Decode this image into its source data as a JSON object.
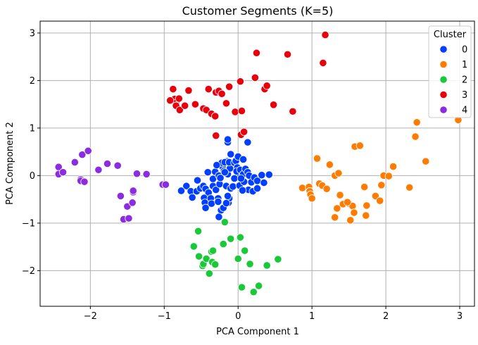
{
  "chart_data": {
    "type": "scatter",
    "title": "Customer Segments (K=5)",
    "xlabel": "PCA Component 1",
    "ylabel": "PCA Component 2",
    "xlim": [
      -2.68,
      3.2
    ],
    "ylim": [
      -2.75,
      3.25
    ],
    "xticks": [
      -2,
      -1,
      0,
      1,
      2,
      3
    ],
    "yticks": [
      -2,
      -1,
      0,
      1,
      2,
      3
    ],
    "xtick_labels": [
      "−2",
      "−1",
      "0",
      "1",
      "2",
      "3"
    ],
    "ytick_labels": [
      "−2",
      "−1",
      "0",
      "1",
      "2",
      "3"
    ],
    "grid": true,
    "legend": {
      "title": "Cluster",
      "position": "top-right"
    },
    "series": [
      {
        "name": "0",
        "color": "#023eff",
        "points": [
          [
            -0.7,
            -0.22
          ],
          [
            -0.77,
            -0.32
          ],
          [
            -0.64,
            -0.33
          ],
          [
            -0.56,
            -0.33
          ],
          [
            -0.62,
            -0.46
          ],
          [
            -0.55,
            -0.1
          ],
          [
            -0.51,
            -0.27
          ],
          [
            -0.47,
            -0.22
          ],
          [
            -0.44,
            -0.28
          ],
          [
            -0.4,
            -0.36
          ],
          [
            -0.46,
            -0.47
          ],
          [
            -0.45,
            -0.57
          ],
          [
            -0.44,
            -0.68
          ],
          [
            -0.37,
            -0.48
          ],
          [
            -0.36,
            -0.59
          ],
          [
            -0.27,
            -0.48
          ],
          [
            -0.27,
            -0.55
          ],
          [
            -0.23,
            -0.73
          ],
          [
            -0.2,
            -0.68
          ],
          [
            -0.26,
            -0.87
          ],
          [
            -0.13,
            -0.57
          ],
          [
            -0.12,
            -0.48
          ],
          [
            -0.34,
            -0.22
          ],
          [
            -0.3,
            -0.3
          ],
          [
            -0.25,
            -0.18
          ],
          [
            -0.16,
            -0.22
          ],
          [
            -0.1,
            -0.27
          ],
          [
            -0.14,
            -0.43
          ],
          [
            -0.16,
            -0.58
          ],
          [
            -0.41,
            0.07
          ],
          [
            -0.34,
            -0.07
          ],
          [
            -0.31,
            0.08
          ],
          [
            -0.26,
            0.0
          ],
          [
            -0.24,
            -0.05
          ],
          [
            -0.21,
            0.18
          ],
          [
            -0.19,
            0.1
          ],
          [
            -0.14,
            0.03
          ],
          [
            -0.11,
            0.15
          ],
          [
            -0.18,
            0.07
          ],
          [
            -0.15,
            0.3
          ],
          [
            -0.22,
            0.27
          ],
          [
            -0.18,
            0.28
          ],
          [
            -0.12,
            0.28
          ],
          [
            -0.1,
            0.45
          ],
          [
            -0.05,
            0.27
          ],
          [
            -0.03,
            0.31
          ],
          [
            -0.01,
            0.17
          ],
          [
            0.02,
            0.0
          ],
          [
            -0.02,
            0.09
          ],
          [
            0.03,
            0.12
          ],
          [
            0.07,
            0.03
          ],
          [
            0.1,
            0.14
          ],
          [
            0.0,
            0.4
          ],
          [
            0.07,
            0.34
          ],
          [
            0.13,
            0.07
          ],
          [
            0.15,
            -0.0
          ],
          [
            0.18,
            -0.14
          ],
          [
            0.22,
            -0.04
          ],
          [
            0.26,
            -0.11
          ],
          [
            0.32,
            0.01
          ],
          [
            0.35,
            -0.15
          ],
          [
            0.42,
            0.02
          ],
          [
            0.14,
            -0.3
          ],
          [
            0.2,
            -0.33
          ],
          [
            0.26,
            -0.27
          ],
          [
            -0.14,
            0.7
          ],
          [
            -0.14,
            0.76
          ],
          [
            0.13,
            0.7
          ],
          [
            -0.07,
            -0.23
          ],
          [
            0.02,
            -0.21
          ],
          [
            0.06,
            -0.31
          ],
          [
            0.08,
            -0.13
          ],
          [
            -0.05,
            -0.06
          ],
          [
            0.04,
            -0.06
          ],
          [
            -0.29,
            0.22
          ]
        ]
      },
      {
        "name": "1",
        "color": "#ff7c00",
        "points": [
          [
            0.87,
            -0.26
          ],
          [
            0.96,
            -0.24
          ],
          [
            0.97,
            -0.33
          ],
          [
            0.98,
            -0.4
          ],
          [
            1.0,
            -0.48
          ],
          [
            1.07,
            0.36
          ],
          [
            1.1,
            -0.17
          ],
          [
            1.14,
            -0.21
          ],
          [
            1.2,
            -0.28
          ],
          [
            1.24,
            0.23
          ],
          [
            1.31,
            -0.88
          ],
          [
            1.34,
            -0.69
          ],
          [
            1.38,
            -0.41
          ],
          [
            1.42,
            -0.6
          ],
          [
            1.5,
            -0.59
          ],
          [
            1.52,
            -0.94
          ],
          [
            1.55,
            -0.64
          ],
          [
            1.57,
            -0.78
          ],
          [
            1.58,
            0.61
          ],
          [
            1.65,
            0.63
          ],
          [
            1.71,
            -0.24
          ],
          [
            1.74,
            -0.63
          ],
          [
            1.73,
            -0.84
          ],
          [
            1.86,
            -0.43
          ],
          [
            1.92,
            -0.53
          ],
          [
            1.94,
            -0.2
          ],
          [
            1.97,
            0.0
          ],
          [
            2.04,
            -0.01
          ],
          [
            2.1,
            0.19
          ],
          [
            2.32,
            -0.25
          ],
          [
            2.4,
            0.82
          ],
          [
            2.42,
            1.12
          ],
          [
            2.54,
            0.3
          ],
          [
            2.98,
            1.17
          ],
          [
            1.31,
            0.0
          ],
          [
            1.36,
            0.05
          ],
          [
            1.48,
            -0.56
          ]
        ]
      },
      {
        "name": "2",
        "color": "#1ac938",
        "points": [
          [
            -0.6,
            -1.49
          ],
          [
            -0.54,
            -1.17
          ],
          [
            -0.53,
            -1.7
          ],
          [
            -0.48,
            -1.9
          ],
          [
            -0.47,
            -1.86
          ],
          [
            -0.43,
            -1.75
          ],
          [
            -0.39,
            -2.06
          ],
          [
            -0.35,
            -1.82
          ],
          [
            -0.36,
            -1.6
          ],
          [
            -0.34,
            -1.58
          ],
          [
            -0.31,
            -1.87
          ],
          [
            -0.2,
            -1.44
          ],
          [
            -0.18,
            -0.98
          ],
          [
            -0.1,
            -1.33
          ],
          [
            0.03,
            -1.3
          ],
          [
            0.0,
            -1.75
          ],
          [
            0.09,
            -1.58
          ],
          [
            0.16,
            -1.86
          ],
          [
            0.05,
            -2.35
          ],
          [
            0.21,
            -2.45
          ],
          [
            0.28,
            -2.32
          ],
          [
            0.39,
            -1.89
          ],
          [
            0.54,
            -1.76
          ]
        ]
      },
      {
        "name": "3",
        "color": "#e8000b",
        "points": [
          [
            -0.88,
            1.82
          ],
          [
            -0.86,
            1.61
          ],
          [
            -0.84,
            1.53
          ],
          [
            -0.84,
            1.47
          ],
          [
            -0.79,
            1.38
          ],
          [
            -0.72,
            1.47
          ],
          [
            -0.67,
            1.79
          ],
          [
            -0.58,
            1.5
          ],
          [
            -0.47,
            1.41
          ],
          [
            -0.43,
            1.38
          ],
          [
            -0.4,
            1.82
          ],
          [
            -0.36,
            1.3
          ],
          [
            -0.31,
            1.25
          ],
          [
            -0.3,
            1.75
          ],
          [
            -0.26,
            1.78
          ],
          [
            -0.22,
            1.72
          ],
          [
            -0.16,
            1.52
          ],
          [
            -0.12,
            1.87
          ],
          [
            -0.3,
            0.84
          ],
          [
            -0.04,
            1.34
          ],
          [
            0.03,
            1.98
          ],
          [
            0.05,
            1.36
          ],
          [
            0.04,
            0.86
          ],
          [
            0.08,
            0.92
          ],
          [
            0.23,
            2.06
          ],
          [
            0.25,
            2.58
          ],
          [
            0.36,
            1.82
          ],
          [
            0.39,
            1.89
          ],
          [
            0.48,
            1.49
          ],
          [
            0.67,
            2.55
          ],
          [
            0.74,
            1.35
          ],
          [
            1.15,
            2.37
          ],
          [
            1.18,
            2.96
          ],
          [
            -0.92,
            1.58
          ],
          [
            -0.8,
            1.62
          ]
        ]
      },
      {
        "name": "4",
        "color": "#8b2be2",
        "points": [
          [
            -2.43,
            0.18
          ],
          [
            -2.43,
            0.03
          ],
          [
            -2.37,
            0.07
          ],
          [
            -2.21,
            0.28
          ],
          [
            -2.13,
            -0.08
          ],
          [
            -2.13,
            -0.11
          ],
          [
            -2.11,
            0.44
          ],
          [
            -2.08,
            -0.13
          ],
          [
            -2.03,
            0.52
          ],
          [
            -1.89,
            0.12
          ],
          [
            -1.77,
            0.25
          ],
          [
            -1.63,
            0.21
          ],
          [
            -1.59,
            -0.43
          ],
          [
            -1.55,
            -0.92
          ],
          [
            -1.5,
            -0.65
          ],
          [
            -1.48,
            -0.9
          ],
          [
            -1.43,
            -0.57
          ],
          [
            -1.42,
            -0.35
          ],
          [
            -1.42,
            -0.32
          ],
          [
            -1.37,
            0.04
          ],
          [
            -1.24,
            0.03
          ],
          [
            -1.02,
            -0.19
          ],
          [
            -0.98,
            -0.19
          ]
        ]
      }
    ]
  }
}
